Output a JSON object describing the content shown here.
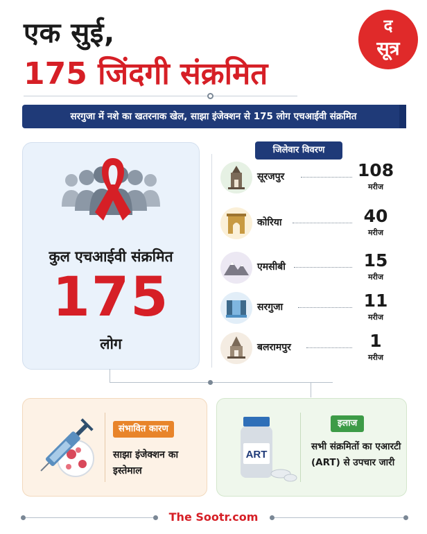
{
  "header": {
    "title_line1": "एक सुई,",
    "title_line2": "175 जिंदगी संक्रमित",
    "logo_top": "द",
    "logo_bottom": "सूत्र"
  },
  "banner": "सरगुजा में नशे का खतरनाक खेल, साझा इंजेक्शन से 175 लोग एचआईवी संक्रमित",
  "total": {
    "label": "कुल एचआईवी संक्रमित",
    "value": "175",
    "unit": "लोग",
    "icons": [
      "people-group-icon",
      "red-ribbon-icon"
    ]
  },
  "districts": {
    "header": "जिलेवार विवरण",
    "unit": "मरीज",
    "items": [
      {
        "name": "सूरजपुर",
        "value": "108",
        "icon": "temple-icon",
        "icon_bg": "#e6f1e4"
      },
      {
        "name": "कोरिया",
        "value": "40",
        "icon": "gate-icon",
        "icon_bg": "#fbf0d8"
      },
      {
        "name": "एमसीबी",
        "value": "15",
        "icon": "mountains-icon",
        "icon_bg": "#ece8f3"
      },
      {
        "name": "सरगुजा",
        "value": "11",
        "icon": "waterfall-icon",
        "icon_bg": "#e2eef8"
      },
      {
        "name": "बलरामपुर",
        "value": "1",
        "icon": "shrine-icon",
        "icon_bg": "#f4ece2"
      }
    ]
  },
  "cause": {
    "tag": "संभावित कारण",
    "text": "साझा इंजेक्शन का इस्तेमाल",
    "icon": "syringe-virus-icon"
  },
  "treatment": {
    "tag": "इलाज",
    "text": "सभी संक्रमितों का एआरटी (ART) से उपचार जारी",
    "bottle_label": "ART",
    "icon": "medicine-bottle-icon"
  },
  "footer": {
    "brand": "The Sootr.com"
  },
  "colors": {
    "accent_red": "#d61f26",
    "navy": "#1f3a78",
    "orange": "#e8842a",
    "green": "#3d9b47"
  }
}
